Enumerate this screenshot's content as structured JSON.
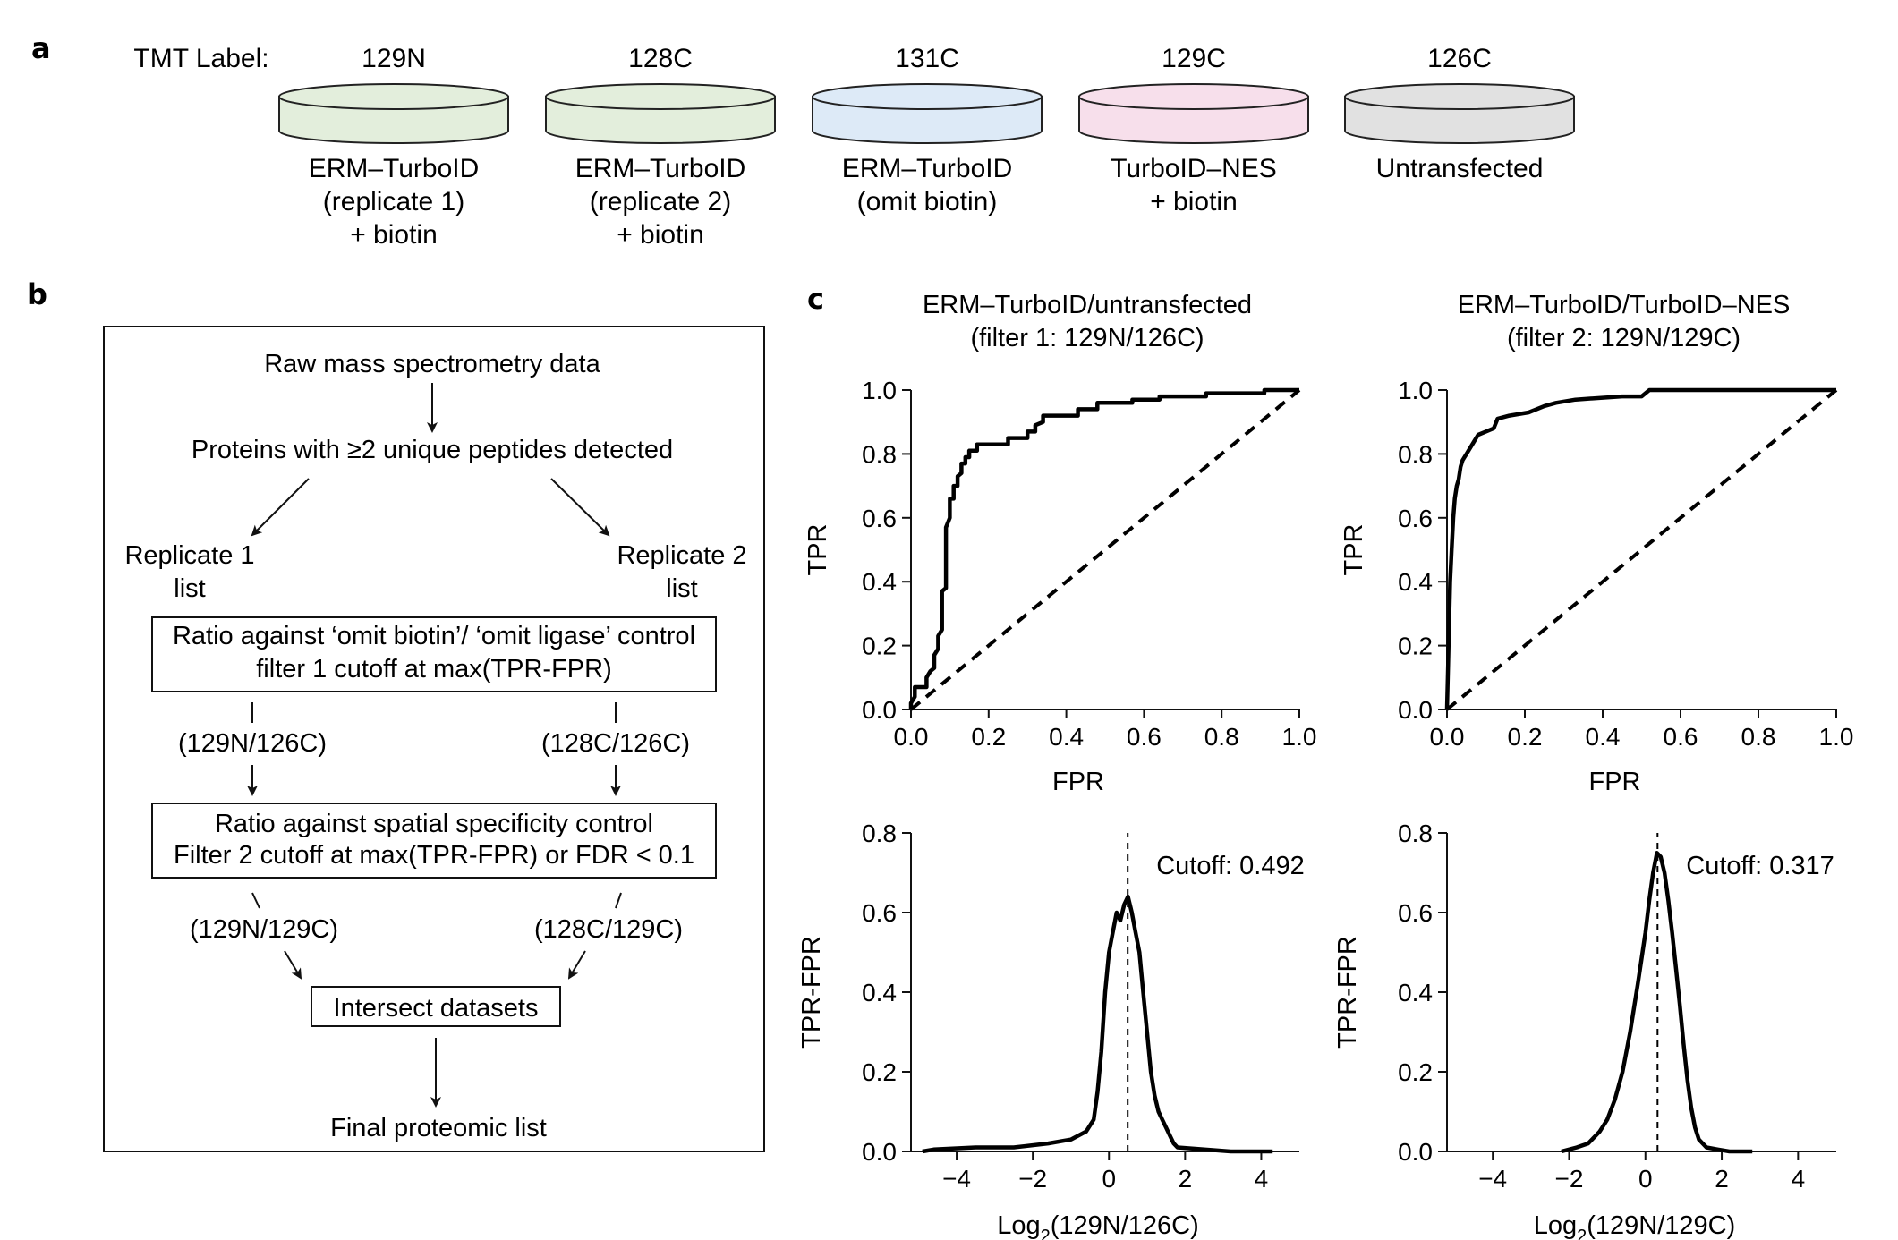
{
  "panel_a": {
    "letter": "a",
    "tmt_label": "TMT Label:",
    "dishes": [
      {
        "tag": "129N",
        "lines": [
          "ERM–TurboID",
          "(replicate 1)",
          "+ biotin"
        ],
        "fill": "#e3eedc"
      },
      {
        "tag": "128C",
        "lines": [
          "ERM–TurboID",
          "(replicate 2)",
          "+ biotin"
        ],
        "fill": "#e3eedc"
      },
      {
        "tag": "131C",
        "lines": [
          "ERM–TurboID",
          "(omit biotin)"
        ],
        "fill": "#ddeaf7"
      },
      {
        "tag": "129C",
        "lines": [
          "TurboID–NES",
          "+ biotin"
        ],
        "fill": "#f7dfeb"
      },
      {
        "tag": "126C",
        "lines": [
          "Untransfected"
        ],
        "fill": "#e1e1e1"
      }
    ]
  },
  "panel_b": {
    "letter": "b",
    "raw": "Raw mass spectrometry data",
    "proteins": "Proteins with ≥2 unique peptides detected",
    "rep1_line1": "Replicate 1",
    "rep1_line2": "list",
    "rep2_line1": "Replicate 2",
    "rep2_line2": "list",
    "filter1_line1": "Ratio against ‘omit biotin’/ ‘omit ligase’ control",
    "filter1_line2": "filter 1 cutoff at max(TPR-FPR)",
    "ratio1_left": "(129N/126C)",
    "ratio1_right": "(128C/126C)",
    "filter2_line1": "Ratio against spatial specificity control",
    "filter2_line2": "Filter 2 cutoff at max(TPR-FPR) or FDR < 0.1",
    "ratio2_left": "(129N/129C)",
    "ratio2_right": "(128C/129C)",
    "intersect": "Intersect datasets",
    "final": "Final proteomic list"
  },
  "panel_c": {
    "letter": "c",
    "roc_titles": [
      [
        "ERM–TurboID/untransfected",
        "(filter 1: 129N/126C)"
      ],
      [
        "ERM–TurboID/TurboID–NES",
        "(filter 2: 129N/129C)"
      ]
    ],
    "hist_xlabels": [
      "Log",
      "Log"
    ],
    "hist_xlabel_sub": "2",
    "hist_xlabel_rest": [
      "(129N/126C)",
      "(129N/129C)"
    ],
    "cutoff_texts": [
      "Cutoff: 0.492",
      "Cutoff: 0.317"
    ]
  },
  "chart_data": [
    {
      "type": "line",
      "title": "ERM–TurboID/untransfected (filter 1: 129N/126C)",
      "xlabel": "FPR",
      "ylabel": "TPR",
      "xlim": [
        0,
        1
      ],
      "ylim": [
        0,
        1
      ],
      "xticks": [
        "0.0",
        "0.2",
        "0.4",
        "0.6",
        "0.8",
        "1.0"
      ],
      "yticks": [
        "0.0",
        "0.2",
        "0.4",
        "0.6",
        "0.8",
        "1.0"
      ],
      "series": [
        {
          "style": "solid",
          "points": [
            [
              0,
              0
            ],
            [
              0,
              0.02
            ],
            [
              0.01,
              0.04
            ],
            [
              0.01,
              0.07
            ],
            [
              0.04,
              0.07
            ],
            [
              0.04,
              0.1
            ],
            [
              0.05,
              0.12
            ],
            [
              0.06,
              0.13
            ],
            [
              0.06,
              0.17
            ],
            [
              0.07,
              0.19
            ],
            [
              0.07,
              0.23
            ],
            [
              0.08,
              0.25
            ],
            [
              0.08,
              0.37
            ],
            [
              0.09,
              0.38
            ],
            [
              0.09,
              0.57
            ],
            [
              0.1,
              0.6
            ],
            [
              0.1,
              0.66
            ],
            [
              0.11,
              0.66
            ],
            [
              0.11,
              0.7
            ],
            [
              0.12,
              0.7
            ],
            [
              0.12,
              0.73
            ],
            [
              0.13,
              0.74
            ],
            [
              0.13,
              0.77
            ],
            [
              0.14,
              0.77
            ],
            [
              0.14,
              0.79
            ],
            [
              0.15,
              0.79
            ],
            [
              0.15,
              0.81
            ],
            [
              0.17,
              0.81
            ],
            [
              0.17,
              0.83
            ],
            [
              0.25,
              0.83
            ],
            [
              0.25,
              0.85
            ],
            [
              0.3,
              0.85
            ],
            [
              0.3,
              0.87
            ],
            [
              0.32,
              0.87
            ],
            [
              0.32,
              0.89
            ],
            [
              0.34,
              0.9
            ],
            [
              0.34,
              0.92
            ],
            [
              0.43,
              0.92
            ],
            [
              0.43,
              0.94
            ],
            [
              0.48,
              0.94
            ],
            [
              0.48,
              0.96
            ],
            [
              0.57,
              0.96
            ],
            [
              0.57,
              0.97
            ],
            [
              0.64,
              0.97
            ],
            [
              0.64,
              0.98
            ],
            [
              0.76,
              0.98
            ],
            [
              0.76,
              0.99
            ],
            [
              0.91,
              0.99
            ],
            [
              0.91,
              1.0
            ],
            [
              1.0,
              1.0
            ]
          ]
        },
        {
          "style": "dashed",
          "points": [
            [
              0,
              0
            ],
            [
              1,
              1
            ]
          ]
        }
      ]
    },
    {
      "type": "line",
      "title": "ERM–TurboID/TurboID–NES (filter 2: 129N/129C)",
      "xlabel": "FPR",
      "ylabel": "TPR",
      "xlim": [
        0,
        1
      ],
      "ylim": [
        0,
        1
      ],
      "xticks": [
        "0.0",
        "0.2",
        "0.4",
        "0.6",
        "0.8",
        "1.0"
      ],
      "yticks": [
        "0.0",
        "0.2",
        "0.4",
        "0.6",
        "0.8",
        "1.0"
      ],
      "series": [
        {
          "style": "solid",
          "points": [
            [
              0,
              0
            ],
            [
              0.002,
              0.1
            ],
            [
              0.005,
              0.25
            ],
            [
              0.008,
              0.4
            ],
            [
              0.012,
              0.5
            ],
            [
              0.016,
              0.6
            ],
            [
              0.02,
              0.66
            ],
            [
              0.025,
              0.7
            ],
            [
              0.03,
              0.72
            ],
            [
              0.035,
              0.76
            ],
            [
              0.04,
              0.78
            ],
            [
              0.05,
              0.8
            ],
            [
              0.06,
              0.82
            ],
            [
              0.07,
              0.84
            ],
            [
              0.08,
              0.86
            ],
            [
              0.1,
              0.87
            ],
            [
              0.12,
              0.88
            ],
            [
              0.13,
              0.91
            ],
            [
              0.16,
              0.92
            ],
            [
              0.21,
              0.93
            ],
            [
              0.25,
              0.95
            ],
            [
              0.28,
              0.96
            ],
            [
              0.33,
              0.97
            ],
            [
              0.45,
              0.98
            ],
            [
              0.5,
              0.98
            ],
            [
              0.52,
              1.0
            ],
            [
              1.0,
              1.0
            ]
          ]
        },
        {
          "style": "dashed",
          "points": [
            [
              0,
              0
            ],
            [
              1,
              1
            ]
          ]
        }
      ]
    },
    {
      "type": "line",
      "title": "",
      "xlabel": "Log2(129N/126C)",
      "ylabel": "TPR-FPR",
      "xlim": [
        -5.2,
        5
      ],
      "ylim": [
        0,
        0.8
      ],
      "xticks": [
        "−4",
        "−2",
        "0",
        "2",
        "4"
      ],
      "yticks": [
        "0.0",
        "0.2",
        "0.4",
        "0.6",
        "0.8"
      ],
      "annotation": "Cutoff: 0.492",
      "cutoff": 0.492,
      "series": [
        {
          "style": "solid",
          "points": [
            [
              -4.9,
              0.0
            ],
            [
              -4.6,
              0.005
            ],
            [
              -3.5,
              0.01
            ],
            [
              -2.5,
              0.01
            ],
            [
              -1.6,
              0.02
            ],
            [
              -1.0,
              0.03
            ],
            [
              -0.6,
              0.05
            ],
            [
              -0.4,
              0.08
            ],
            [
              -0.3,
              0.15
            ],
            [
              -0.2,
              0.25
            ],
            [
              -0.1,
              0.4
            ],
            [
              0.0,
              0.5
            ],
            [
              0.1,
              0.55
            ],
            [
              0.2,
              0.6
            ],
            [
              0.3,
              0.58
            ],
            [
              0.4,
              0.62
            ],
            [
              0.5,
              0.64
            ],
            [
              0.6,
              0.6
            ],
            [
              0.7,
              0.55
            ],
            [
              0.8,
              0.5
            ],
            [
              0.9,
              0.4
            ],
            [
              1.0,
              0.3
            ],
            [
              1.1,
              0.2
            ],
            [
              1.2,
              0.14
            ],
            [
              1.3,
              0.1
            ],
            [
              1.4,
              0.08
            ],
            [
              1.5,
              0.06
            ],
            [
              1.6,
              0.04
            ],
            [
              1.7,
              0.02
            ],
            [
              1.8,
              0.01
            ],
            [
              2.5,
              0.005
            ],
            [
              3.2,
              0.0
            ],
            [
              4.3,
              0.0
            ]
          ]
        },
        {
          "style": "dashed",
          "points": [
            [
              0.492,
              0
            ],
            [
              0.492,
              0.8
            ]
          ]
        }
      ]
    },
    {
      "type": "line",
      "title": "",
      "xlabel": "Log2(129N/129C)",
      "ylabel": "TPR-FPR",
      "xlim": [
        -5.2,
        5
      ],
      "ylim": [
        0,
        0.8
      ],
      "xticks": [
        "−4",
        "−2",
        "0",
        "2",
        "4"
      ],
      "yticks": [
        "0.0",
        "0.2",
        "0.4",
        "0.6",
        "0.8"
      ],
      "annotation": "Cutoff: 0.317",
      "cutoff": 0.317,
      "series": [
        {
          "style": "solid",
          "points": [
            [
              -2.2,
              0.0
            ],
            [
              -1.8,
              0.01
            ],
            [
              -1.5,
              0.02
            ],
            [
              -1.2,
              0.05
            ],
            [
              -1.0,
              0.08
            ],
            [
              -0.8,
              0.13
            ],
            [
              -0.6,
              0.2
            ],
            [
              -0.4,
              0.3
            ],
            [
              -0.2,
              0.42
            ],
            [
              0.0,
              0.55
            ],
            [
              0.1,
              0.63
            ],
            [
              0.2,
              0.7
            ],
            [
              0.3,
              0.75
            ],
            [
              0.4,
              0.74
            ],
            [
              0.5,
              0.7
            ],
            [
              0.6,
              0.63
            ],
            [
              0.7,
              0.55
            ],
            [
              0.8,
              0.46
            ],
            [
              0.9,
              0.37
            ],
            [
              1.0,
              0.27
            ],
            [
              1.1,
              0.18
            ],
            [
              1.2,
              0.11
            ],
            [
              1.3,
              0.06
            ],
            [
              1.4,
              0.03
            ],
            [
              1.6,
              0.01
            ],
            [
              1.9,
              0.005
            ],
            [
              2.2,
              0.0
            ],
            [
              2.8,
              0.0
            ]
          ]
        },
        {
          "style": "dashed",
          "points": [
            [
              0.317,
              0
            ],
            [
              0.317,
              0.8
            ]
          ]
        }
      ]
    }
  ]
}
